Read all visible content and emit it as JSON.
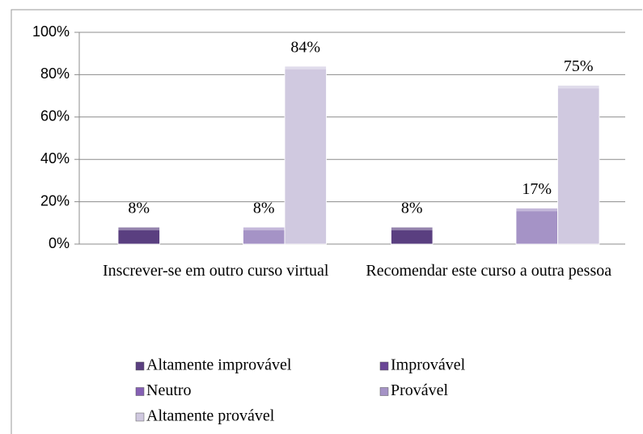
{
  "chart_data": {
    "type": "bar",
    "categories": [
      "Inscrever-se em outro curso virtual",
      "Recomendar este curso a outra pessoa"
    ],
    "series": [
      {
        "name": "Altamente improvável",
        "color": "#5a3f80",
        "values": [
          8,
          8
        ],
        "value_labels": [
          "8%",
          "8%"
        ]
      },
      {
        "name": "Improvável",
        "color": "#6a4696",
        "values": [
          null,
          null
        ],
        "value_labels": [
          null,
          null
        ]
      },
      {
        "name": "Neutro",
        "color": "#8560b4",
        "values": [
          null,
          null
        ],
        "value_labels": [
          null,
          null
        ]
      },
      {
        "name": "Provável",
        "color": "#a593c6",
        "values": [
          8,
          17
        ],
        "value_labels": [
          "8%",
          "17%"
        ]
      },
      {
        "name": "Altamente provável",
        "color": "#d0c9e0",
        "values": [
          84,
          75
        ],
        "value_labels": [
          "84%",
          "75%"
        ]
      }
    ],
    "ylim": [
      0,
      100
    ],
    "yticks": [
      {
        "value": 0,
        "label": "0%"
      },
      {
        "value": 20,
        "label": "20%"
      },
      {
        "value": 40,
        "label": "40%"
      },
      {
        "value": 60,
        "label": "60%"
      },
      {
        "value": 80,
        "label": "80%"
      },
      {
        "value": 100,
        "label": "100%"
      }
    ],
    "grid": true
  }
}
